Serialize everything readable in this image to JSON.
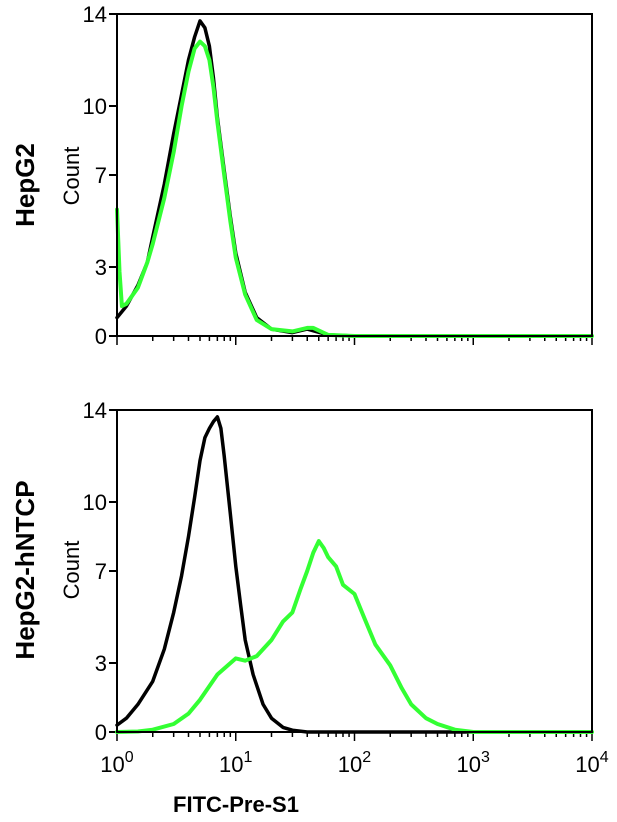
{
  "chart_data": [
    {
      "type": "line",
      "panel_label": "HepG2",
      "ylabel": "Count",
      "xscale": "log",
      "xlim": [
        1,
        10000
      ],
      "ylim": [
        0,
        14
      ],
      "yticks": [
        "0",
        "3",
        "7",
        "10",
        "14"
      ],
      "ytick_values": [
        0,
        3,
        7,
        10,
        14
      ],
      "grid": false,
      "series": [
        {
          "color": "#000000",
          "x": [
            1,
            1.2,
            1.5,
            1.8,
            2,
            2.5,
            3,
            3.5,
            4,
            4.5,
            5,
            5.5,
            6,
            6.5,
            7,
            8,
            9,
            10,
            12,
            15,
            20,
            30,
            40,
            60,
            100,
            1000,
            10000
          ],
          "y": [
            0.8,
            1.3,
            2.2,
            3.2,
            4.3,
            6.6,
            8.8,
            10.5,
            12.0,
            13.0,
            13.7,
            13.4,
            12.6,
            11.2,
            9.5,
            7.2,
            5.2,
            3.6,
            1.9,
            0.8,
            0.3,
            0.15,
            0.3,
            0.05,
            0.0,
            0.0,
            0.0
          ]
        },
        {
          "color": "#33ff33",
          "x": [
            1,
            1.05,
            1.1,
            1.2,
            1.5,
            1.8,
            2,
            2.5,
            3,
            3.5,
            4,
            4.5,
            5,
            5.5,
            6,
            6.5,
            7,
            8,
            9,
            10,
            12,
            15,
            20,
            30,
            40,
            45,
            60,
            100,
            1000,
            10000
          ],
          "y": [
            5.5,
            2.8,
            1.3,
            1.4,
            2.1,
            3.2,
            4.0,
            6.0,
            8.0,
            10.0,
            11.5,
            12.5,
            12.8,
            12.6,
            12.0,
            10.8,
            9.3,
            7.0,
            5.0,
            3.4,
            1.8,
            0.7,
            0.3,
            0.2,
            0.35,
            0.35,
            0.05,
            0.0,
            0.0,
            0.0
          ]
        }
      ]
    },
    {
      "type": "line",
      "panel_label": "HepG2-hNTCP",
      "ylabel": "Count",
      "xlabel": "FITC-Pre-S1",
      "xscale": "log",
      "xlim": [
        1,
        10000
      ],
      "ylim": [
        0,
        14
      ],
      "yticks": [
        "0",
        "3",
        "7",
        "10",
        "14"
      ],
      "ytick_values": [
        0,
        3,
        7,
        10,
        14
      ],
      "xticks": [
        {
          "base": "10",
          "exp": "0",
          "value": 1
        },
        {
          "base": "10",
          "exp": "1",
          "value": 10
        },
        {
          "base": "10",
          "exp": "2",
          "value": 100
        },
        {
          "base": "10",
          "exp": "3",
          "value": 1000
        },
        {
          "base": "10",
          "exp": "4",
          "value": 10000
        }
      ],
      "grid": false,
      "series": [
        {
          "color": "#000000",
          "x": [
            1,
            1.2,
            1.5,
            2,
            2.5,
            3,
            3.5,
            4,
            4.5,
            5,
            5.5,
            6,
            6.5,
            7,
            7.5,
            8,
            9,
            10,
            11,
            12,
            14,
            17,
            20,
            25,
            30,
            40,
            100,
            10000
          ],
          "y": [
            0.3,
            0.6,
            1.2,
            2.2,
            3.6,
            5.2,
            6.8,
            8.5,
            10.2,
            11.8,
            12.8,
            13.2,
            13.5,
            13.7,
            13.2,
            12.0,
            9.5,
            7.2,
            5.5,
            4.0,
            2.5,
            1.2,
            0.6,
            0.2,
            0.08,
            0.0,
            0.0,
            0.0
          ]
        },
        {
          "color": "#33ff33",
          "x": [
            1,
            1.5,
            2,
            3,
            4,
            5,
            7,
            10,
            12,
            15,
            20,
            25,
            30,
            35,
            40,
            45,
            50,
            55,
            60,
            70,
            80,
            100,
            120,
            150,
            200,
            250,
            300,
            400,
            500,
            700,
            1000,
            10000
          ],
          "y": [
            0.0,
            0.02,
            0.1,
            0.35,
            0.8,
            1.4,
            2.5,
            3.2,
            3.1,
            3.3,
            4.0,
            4.8,
            5.2,
            6.2,
            7.0,
            7.8,
            8.3,
            8.0,
            7.6,
            7.2,
            6.4,
            6.0,
            5.0,
            3.8,
            2.9,
            1.9,
            1.2,
            0.6,
            0.35,
            0.1,
            0.0,
            0.0
          ]
        }
      ]
    }
  ]
}
